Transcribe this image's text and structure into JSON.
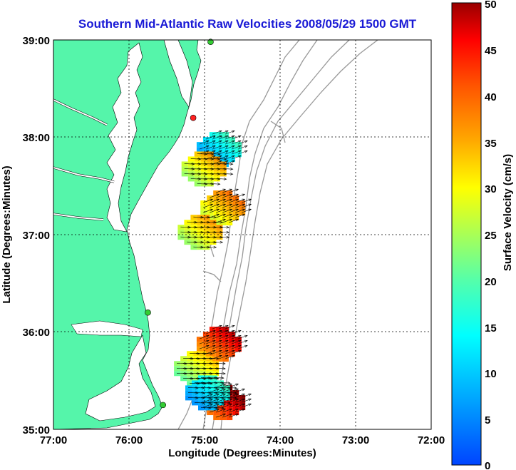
{
  "title": "Southern Mid-Atlantic Raw Velocities 2008/05/29 1500 GMT",
  "xaxis": {
    "label": "Longitude (Degrees:Minutes)",
    "ticks": [
      "77:00",
      "76:00",
      "75:00",
      "74:00",
      "73:00",
      "72:00"
    ],
    "range": [
      -77,
      -72
    ]
  },
  "yaxis": {
    "label": "Latitude (Degrees:Minutes)",
    "ticks": [
      "39:00",
      "38:00",
      "37:00",
      "36:00",
      "35:00"
    ],
    "range": [
      35,
      39
    ]
  },
  "colorbar": {
    "label": "Surface Velocity (cm/s)",
    "ticks": [
      "50",
      "45",
      "40",
      "35",
      "30",
      "25",
      "20",
      "15",
      "10",
      "5",
      "0"
    ],
    "range": [
      0,
      50
    ]
  },
  "colors": {
    "land": "#55f5aa",
    "title": "#1a1ad6",
    "bathymetry": "#999999",
    "grid": "#000000"
  },
  "velocity_patches": [
    {
      "lon": -74.85,
      "lat": 37.9,
      "speed": 12
    },
    {
      "lon": -75.05,
      "lat": 37.7,
      "speed": 30
    },
    {
      "lon": -74.8,
      "lat": 37.3,
      "speed": 33
    },
    {
      "lon": -75.1,
      "lat": 37.05,
      "speed": 30
    },
    {
      "lon": -74.85,
      "lat": 35.9,
      "speed": 42
    },
    {
      "lon": -75.15,
      "lat": 35.65,
      "speed": 27
    },
    {
      "lon": -74.8,
      "lat": 35.3,
      "speed": 45
    },
    {
      "lon": -75.0,
      "lat": 35.4,
      "speed": 12
    }
  ],
  "station_markers": [
    {
      "lon": -74.92,
      "lat": 38.98,
      "color": "#33cc33"
    },
    {
      "lon": -75.15,
      "lat": 38.2,
      "color": "#ff2222"
    },
    {
      "lon": -75.75,
      "lat": 36.2,
      "color": "#33cc33"
    },
    {
      "lon": -75.55,
      "lat": 35.25,
      "color": "#33cc33"
    }
  ]
}
